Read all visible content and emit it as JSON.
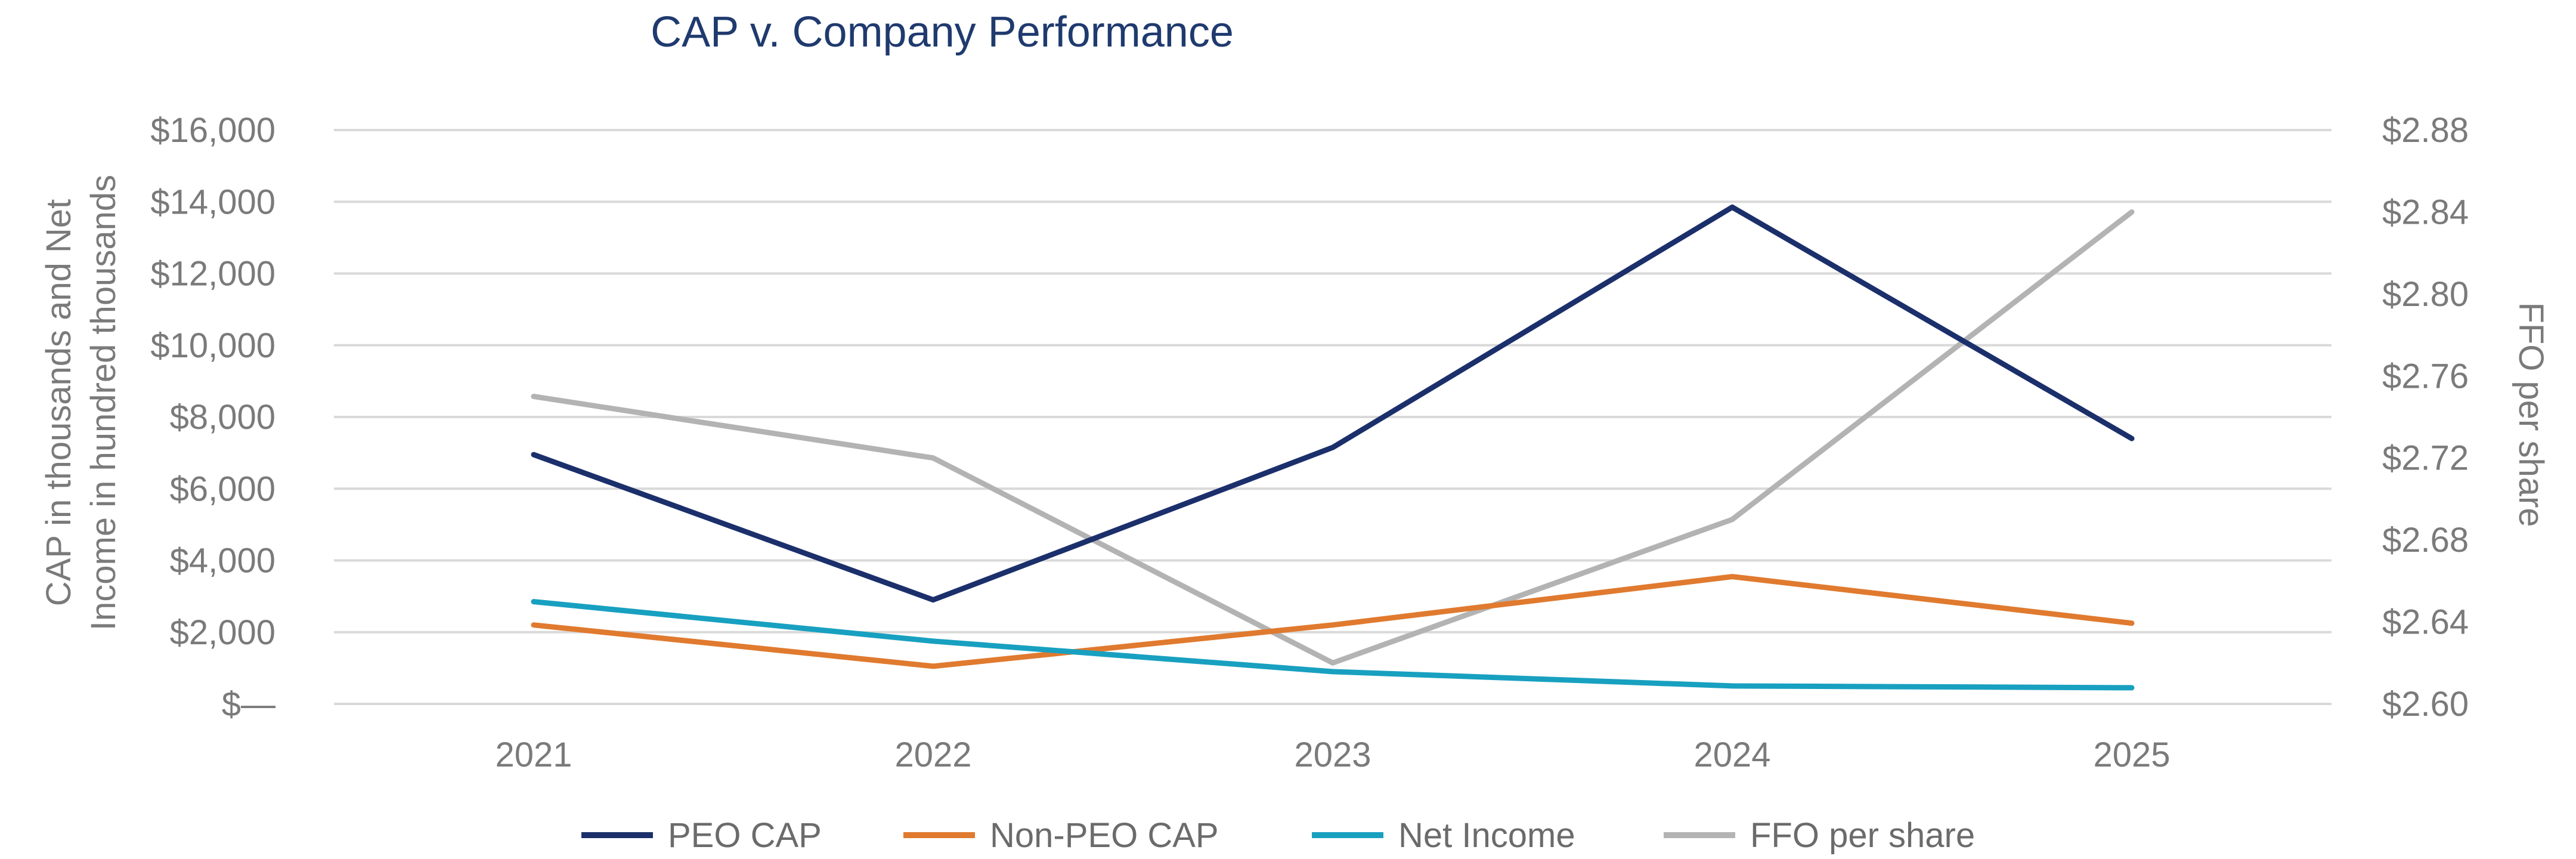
{
  "chart_data": {
    "type": "line",
    "title": "CAP v. Company Performance",
    "categories": [
      "2021",
      "2022",
      "2023",
      "2024",
      "2025"
    ],
    "y_left": {
      "label_lines": [
        "CAP in thousands and Net",
        "Income in hundred thousands"
      ],
      "ylim": [
        0,
        16000
      ],
      "ticks": [
        0,
        2000,
        4000,
        6000,
        8000,
        10000,
        12000,
        14000,
        16000
      ],
      "tick_labels": [
        "$—",
        "$2,000",
        "$4,000",
        "$6,000",
        "$8,000",
        "$10,000",
        "$12,000",
        "$14,000",
        "$16,000"
      ]
    },
    "y_right": {
      "label": "FFO per share",
      "ylim": [
        2.6,
        2.88
      ],
      "ticks": [
        2.6,
        2.64,
        2.68,
        2.72,
        2.76,
        2.8,
        2.84,
        2.88
      ],
      "tick_labels": [
        "$2.60",
        "$2.64",
        "$2.68",
        "$2.72",
        "$2.76",
        "$2.80",
        "$2.84",
        "$2.88"
      ]
    },
    "grid": true,
    "legend_position": "bottom",
    "series": [
      {
        "name": "PEO CAP",
        "axis": "left",
        "color": "#1b2f6b",
        "values": [
          6950,
          2900,
          7150,
          13850,
          7400
        ]
      },
      {
        "name": "Non-PEO CAP",
        "axis": "left",
        "color": "#e07a2f",
        "values": [
          2200,
          1050,
          2200,
          3550,
          2250
        ]
      },
      {
        "name": "Net Income",
        "axis": "left",
        "color": "#18a0c0",
        "values": [
          2850,
          1750,
          900,
          500,
          450
        ]
      },
      {
        "name": "FFO per share",
        "axis": "right",
        "color": "#b3b3b3",
        "values": [
          2.75,
          2.72,
          2.62,
          2.69,
          2.84
        ]
      }
    ]
  }
}
